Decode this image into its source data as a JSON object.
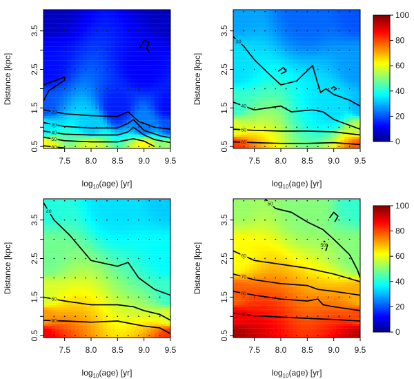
{
  "chart_data": [
    {
      "type": "heatmap",
      "panel": "top-left",
      "xlabel_main": "log",
      "xlabel_sub": "10",
      "xlabel_rest": "(age) [yr]",
      "ylabel": "Distance [kpc]",
      "xlim": [
        7.1,
        9.5
      ],
      "ylim": [
        0.45,
        4.05
      ],
      "xticks": [
        "7.5",
        "8.0",
        "8.5",
        "9.0",
        "9.5"
      ],
      "yticks": [
        "0.5",
        "1.5",
        "2.5",
        "3.5"
      ],
      "yticks_minor": [
        1.0,
        2.0,
        3.0
      ],
      "contours": [
        {
          "level": "60",
          "points": [
            [
              7.1,
              0.52
            ],
            [
              7.5,
              0.46
            ]
          ]
        },
        {
          "level": "50",
          "points": [
            [
              7.1,
              0.74
            ],
            [
              7.5,
              0.65
            ],
            [
              8.0,
              0.62
            ],
            [
              8.5,
              0.62
            ],
            [
              8.8,
              0.7
            ],
            [
              9.0,
              0.64
            ],
            [
              9.2,
              0.5
            ]
          ]
        },
        {
          "level": "40",
          "points": [
            [
              7.1,
              0.9
            ],
            [
              7.5,
              0.82
            ],
            [
              8.0,
              0.8
            ],
            [
              8.5,
              0.8
            ],
            [
              8.7,
              0.88
            ],
            [
              8.8,
              1.0
            ],
            [
              9.0,
              0.8
            ],
            [
              9.2,
              0.68
            ],
            [
              9.5,
              0.6
            ]
          ]
        },
        {
          "level": "30",
          "points": [
            [
              7.1,
              1.12
            ],
            [
              7.5,
              1.02
            ],
            [
              8.0,
              0.98
            ],
            [
              8.5,
              0.98
            ],
            [
              8.7,
              1.1
            ],
            [
              8.8,
              1.2
            ],
            [
              9.0,
              0.92
            ],
            [
              9.3,
              0.78
            ],
            [
              9.5,
              0.72
            ]
          ]
        },
        {
          "level": "20",
          "points": [
            [
              7.1,
              1.45
            ],
            [
              7.5,
              1.35
            ],
            [
              8.0,
              1.3
            ],
            [
              8.5,
              1.28
            ],
            [
              8.7,
              1.4
            ],
            [
              8.9,
              1.15
            ],
            [
              9.2,
              1.0
            ],
            [
              9.5,
              0.95
            ]
          ]
        },
        {
          "level": "",
          "points": [
            [
              7.1,
              1.68
            ],
            [
              7.2,
              1.95
            ],
            [
              7.5,
              2.22
            ],
            [
              7.5,
              2.3
            ],
            [
              7.3,
              2.2
            ],
            [
              7.1,
              2.1
            ]
          ]
        },
        {
          "level": "",
          "points": [
            [
              8.92,
              3.05
            ],
            [
              9.0,
              3.25
            ],
            [
              9.1,
              3.2
            ],
            [
              9.05,
              3.05
            ],
            [
              9.1,
              2.95
            ]
          ]
        }
      ],
      "field_points": [
        [
          7.1,
          0.5,
          62
        ],
        [
          8.0,
          0.5,
          58
        ],
        [
          9.0,
          0.5,
          62
        ],
        [
          9.5,
          0.5,
          52
        ],
        [
          7.1,
          1.0,
          35
        ],
        [
          8.0,
          1.0,
          32
        ],
        [
          9.0,
          1.0,
          24
        ],
        [
          9.5,
          1.0,
          20
        ],
        [
          7.1,
          1.5,
          20
        ],
        [
          8.5,
          1.5,
          15
        ],
        [
          9.5,
          1.5,
          13
        ],
        [
          7.1,
          2.5,
          13
        ],
        [
          9.0,
          2.5,
          12
        ],
        [
          7.1,
          4.0,
          6
        ],
        [
          9.5,
          4.0,
          6
        ]
      ]
    },
    {
      "type": "heatmap",
      "panel": "top-right",
      "xlabel_main": "log",
      "xlabel_sub": "10",
      "xlabel_rest": "(age) [yr]",
      "ylabel": "Distance [kpc]",
      "xlim": [
        7.1,
        9.5
      ],
      "ylim": [
        0.45,
        4.05
      ],
      "xticks": [
        "7.5",
        "8.0",
        "8.5",
        "9.0",
        "9.5"
      ],
      "yticks": [
        "0.5",
        "1.5",
        "2.5",
        "3.5"
      ],
      "yticks_minor": [
        1.0,
        2.0,
        3.0
      ],
      "contours": [
        {
          "level": "80",
          "points": [
            [
              7.1,
              0.62
            ],
            [
              7.5,
              0.6
            ],
            [
              8.0,
              0.58
            ],
            [
              8.5,
              0.58
            ],
            [
              9.0,
              0.6
            ],
            [
              9.5,
              0.55
            ]
          ]
        },
        {
          "level": "60",
          "points": [
            [
              7.1,
              0.95
            ],
            [
              7.5,
              0.92
            ],
            [
              8.0,
              0.9
            ],
            [
              8.5,
              0.9
            ],
            [
              9.0,
              0.88
            ],
            [
              9.5,
              0.8
            ]
          ]
        },
        {
          "level": "40",
          "points": [
            [
              7.1,
              1.65
            ],
            [
              7.5,
              1.45
            ],
            [
              8.0,
              1.55
            ],
            [
              8.2,
              1.4
            ],
            [
              8.6,
              1.45
            ],
            [
              8.8,
              1.4
            ],
            [
              9.0,
              1.2
            ],
            [
              9.5,
              0.95
            ]
          ]
        },
        {
          "level": "30",
          "points": [
            [
              7.1,
              3.35
            ],
            [
              7.3,
              3.1
            ],
            [
              7.5,
              2.75
            ],
            [
              7.8,
              2.35
            ],
            [
              8.0,
              2.1
            ],
            [
              8.3,
              2.2
            ],
            [
              8.6,
              2.6
            ],
            [
              8.75,
              1.9
            ],
            [
              8.85,
              2.0
            ],
            [
              9.0,
              1.85
            ],
            [
              9.3,
              1.7
            ],
            [
              9.5,
              1.55
            ]
          ]
        },
        {
          "level": "",
          "points": [
            [
              7.95,
              2.45
            ],
            [
              8.05,
              2.55
            ],
            [
              8.1,
              2.45
            ],
            [
              8.0,
              2.38
            ]
          ]
        },
        {
          "level": "",
          "points": [
            [
              8.95,
              2.0
            ],
            [
              9.0,
              2.05
            ],
            [
              9.05,
              2.0
            ],
            [
              9.0,
              1.96
            ]
          ]
        }
      ],
      "field_points": [
        [
          7.1,
          0.5,
          82
        ],
        [
          9.5,
          0.5,
          78
        ],
        [
          7.1,
          1.0,
          58
        ],
        [
          9.5,
          1.0,
          55
        ],
        [
          7.1,
          1.5,
          42
        ],
        [
          9.0,
          1.5,
          34
        ],
        [
          9.5,
          1.5,
          30
        ],
        [
          7.1,
          2.5,
          34
        ],
        [
          9.5,
          2.5,
          27
        ],
        [
          7.1,
          4.0,
          28
        ],
        [
          8.5,
          4.0,
          22
        ],
        [
          9.5,
          4.0,
          20
        ]
      ]
    },
    {
      "type": "heatmap",
      "panel": "bottom-left",
      "xlabel_main": "log",
      "xlabel_sub": "10",
      "xlabel_rest": "(age) [yr]",
      "ylabel": "Distance [kpc]",
      "xlim": [
        7.1,
        9.5
      ],
      "ylim": [
        0.45,
        4.05
      ],
      "xticks": [
        "7.5",
        "8.0",
        "8.5",
        "9.0",
        "9.5"
      ],
      "yticks": [
        "0.5",
        "1.5",
        "2.5",
        "3.5"
      ],
      "yticks_minor": [
        1.0,
        2.0,
        3.0
      ],
      "contours": [
        {
          "level": "80",
          "points": [
            [
              7.1,
              0.9
            ],
            [
              7.5,
              0.88
            ],
            [
              8.0,
              0.85
            ],
            [
              8.5,
              0.88
            ],
            [
              8.8,
              0.8
            ],
            [
              9.0,
              0.75
            ],
            [
              9.3,
              0.7
            ],
            [
              9.5,
              0.55
            ]
          ]
        },
        {
          "level": "60",
          "points": [
            [
              7.1,
              1.5
            ],
            [
              7.5,
              1.4
            ],
            [
              8.0,
              1.3
            ],
            [
              8.5,
              1.3
            ],
            [
              8.8,
              1.25
            ],
            [
              9.0,
              1.15
            ],
            [
              9.3,
              1.05
            ],
            [
              9.5,
              0.9
            ]
          ]
        },
        {
          "level": "40",
          "points": [
            [
              7.1,
              3.95
            ],
            [
              7.3,
              3.5
            ],
            [
              7.6,
              3.1
            ],
            [
              8.0,
              2.45
            ],
            [
              8.5,
              2.3
            ],
            [
              8.7,
              2.4
            ],
            [
              8.9,
              2.0
            ],
            [
              9.2,
              1.7
            ],
            [
              9.5,
              1.55
            ]
          ]
        }
      ],
      "field_points": [
        [
          7.1,
          0.5,
          88
        ],
        [
          9.5,
          0.5,
          82
        ],
        [
          7.1,
          1.0,
          72
        ],
        [
          9.5,
          1.0,
          58
        ],
        [
          7.1,
          1.5,
          58
        ],
        [
          9.5,
          1.5,
          42
        ],
        [
          7.1,
          2.5,
          48
        ],
        [
          9.5,
          2.5,
          37
        ],
        [
          7.1,
          4.0,
          40
        ],
        [
          8.5,
          4.0,
          34
        ],
        [
          9.5,
          4.0,
          32
        ]
      ]
    },
    {
      "type": "heatmap",
      "panel": "bottom-right",
      "xlabel_main": "log",
      "xlabel_sub": "10",
      "xlabel_rest": "(age) [yr]",
      "ylabel": "Distance [kpc]",
      "xlim": [
        7.1,
        9.5
      ],
      "ylim": [
        0.45,
        4.05
      ],
      "xticks": [
        "7.5",
        "8.0",
        "8.5",
        "9.0",
        "9.5"
      ],
      "yticks": [
        "0.5",
        "1.5",
        "2.5",
        "3.5"
      ],
      "yticks_minor": [
        1.0,
        2.0,
        3.0
      ],
      "contours": [
        {
          "level": "90",
          "points": [
            [
              7.1,
              1.08
            ],
            [
              7.5,
              1.02
            ],
            [
              8.0,
              0.98
            ],
            [
              8.5,
              0.95
            ],
            [
              9.0,
              0.92
            ],
            [
              9.5,
              0.88
            ]
          ]
        },
        {
          "level": "80",
          "points": [
            [
              7.1,
              1.65
            ],
            [
              7.5,
              1.55
            ],
            [
              8.0,
              1.45
            ],
            [
              8.5,
              1.4
            ],
            [
              8.7,
              1.45
            ],
            [
              8.8,
              1.3
            ],
            [
              9.0,
              1.25
            ],
            [
              9.5,
              1.15
            ]
          ]
        },
        {
          "level": "70",
          "points": [
            [
              7.1,
              2.1
            ],
            [
              7.5,
              1.95
            ],
            [
              8.0,
              1.85
            ],
            [
              8.5,
              1.8
            ],
            [
              8.7,
              1.7
            ],
            [
              9.0,
              1.65
            ],
            [
              9.5,
              1.55
            ]
          ]
        },
        {
          "level": "60",
          "points": [
            [
              7.1,
              2.7
            ],
            [
              7.5,
              2.45
            ],
            [
              8.0,
              2.35
            ],
            [
              8.5,
              2.25
            ],
            [
              9.0,
              2.1
            ],
            [
              9.5,
              1.9
            ]
          ]
        },
        {
          "level": "50",
          "points": [
            [
              7.7,
              4.05
            ],
            [
              7.9,
              3.8
            ],
            [
              8.2,
              3.7
            ],
            [
              8.5,
              3.45
            ],
            [
              8.8,
              3.25
            ],
            [
              9.0,
              3.0
            ],
            [
              9.3,
              2.6
            ],
            [
              9.45,
              2.2
            ],
            [
              9.5,
              2.0
            ]
          ]
        },
        {
          "level": "",
          "points": [
            [
              8.92,
              3.55
            ],
            [
              9.0,
              3.7
            ],
            [
              9.08,
              3.6
            ],
            [
              9.02,
              3.45
            ]
          ]
        },
        {
          "level": "50",
          "points": [
            [
              8.78,
              2.75
            ],
            [
              8.82,
              2.95
            ],
            [
              8.88,
              2.85
            ],
            [
              8.85,
              2.7
            ]
          ]
        }
      ],
      "field_points": [
        [
          7.1,
          0.5,
          96
        ],
        [
          9.5,
          0.5,
          94
        ],
        [
          7.1,
          1.0,
          88
        ],
        [
          9.5,
          1.0,
          80
        ],
        [
          7.1,
          1.5,
          78
        ],
        [
          9.5,
          1.5,
          70
        ],
        [
          7.1,
          2.5,
          62
        ],
        [
          9.5,
          2.5,
          50
        ],
        [
          7.1,
          4.0,
          52
        ],
        [
          8.5,
          4.0,
          50
        ],
        [
          9.5,
          4.0,
          42
        ]
      ]
    }
  ],
  "colorbars": [
    {
      "label_position": "top-right",
      "range": [
        0,
        100
      ],
      "ticks": [
        "0",
        "20",
        "40",
        "60",
        "80",
        "100"
      ]
    },
    {
      "label_position": "bottom-right",
      "range": [
        0,
        100
      ],
      "ticks": [
        "0",
        "20",
        "40",
        "60",
        "80",
        "100"
      ]
    }
  ]
}
